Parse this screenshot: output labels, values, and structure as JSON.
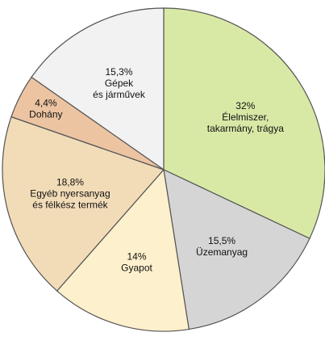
{
  "chart_data": {
    "type": "pie",
    "categories": [
      [
        "Élelmiszer,",
        "takarmány, trágya"
      ],
      [
        "Üzemanyag"
      ],
      [
        "Gyapot"
      ],
      [
        "Egyéb nyersanyag",
        "és félkész termék"
      ],
      [
        "Dohány"
      ],
      [
        "Gépek",
        "és járművek"
      ]
    ],
    "values": [
      32,
      15.5,
      14,
      18.8,
      4.4,
      15.3
    ],
    "value_labels": [
      "32%",
      "15,5%",
      "14%",
      "18,8%",
      "4,4%",
      "15,3%"
    ],
    "colors": [
      "#d8e9a6",
      "#d5d5d5",
      "#fdf0cc",
      "#f2dcb8",
      "#ecc4a2",
      "#f2f2f2"
    ]
  }
}
